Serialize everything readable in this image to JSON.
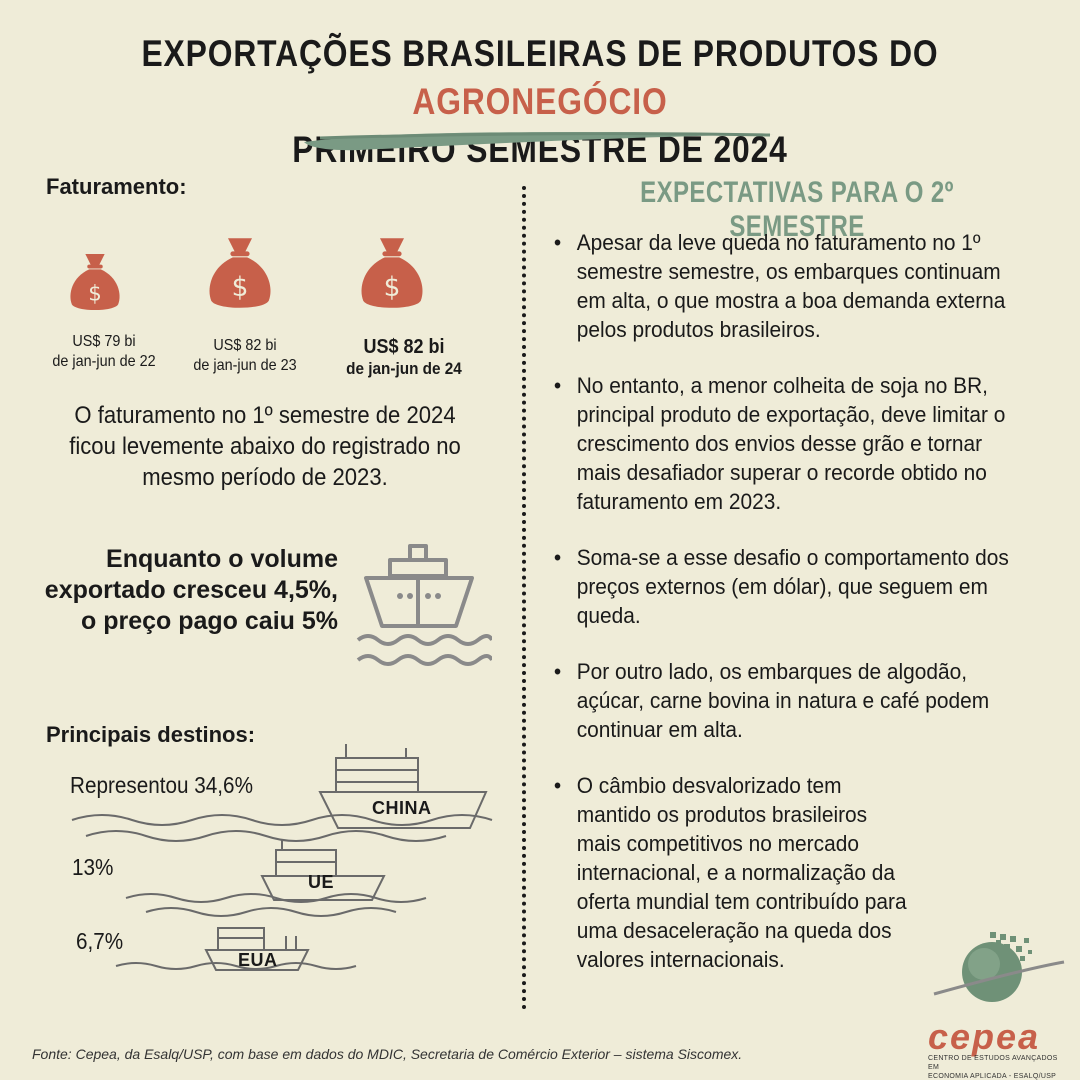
{
  "title": {
    "line1_main": "EXPORTAÇÕES BRASILEIRAS DE PRODUTOS DO",
    "line1_accent": "AGRONEGÓCIO",
    "line2": "PRIMEIRO SEMESTRE DE 2024"
  },
  "faturamento": {
    "heading": "Faturamento:",
    "items": [
      {
        "value": "US$ 79 bi",
        "period": "de jan-jun de 22"
      },
      {
        "value": "US$ 82 bi",
        "period": "de jan-jun de 23"
      },
      {
        "value": "US$ 82 bi",
        "period": "de jan-jun de 24"
      }
    ],
    "summary": "O faturamento no 1º semestre de 2024 ficou levemente abaixo do registrado no mesmo período de 2023."
  },
  "volume_text": "Enquanto o volume exportado cresceu 4,5%, o preço pago caiu 5%",
  "destinos": {
    "heading": "Principais destinos:",
    "items": [
      {
        "value": "Representou 34,6%",
        "country": "CHINA"
      },
      {
        "value": "13%",
        "country": "UE"
      },
      {
        "value": "6,7%",
        "country": "EUA"
      }
    ]
  },
  "expectativas": {
    "heading": "EXPECTATIVAS PARA O 2º SEMESTRE",
    "bullets": [
      "Apesar da leve queda no faturamento no 1º semestre semestre, os embarques continuam em alta, o que mostra a boa demanda externa pelos produtos brasileiros.",
      "No entanto, a menor colheita de soja no BR, principal produto de exportação, deve limitar o crescimento dos envios desse grão e tornar mais desafiador superar o recorde obtido no faturamento em 2023.",
      "Soma-se a esse desafio o comportamento dos preços externos (em dólar), que seguem em queda.",
      "Por outro lado, os embarques de algodão, açúcar, carne bovina in natura e café podem continuar em alta.",
      "O câmbio desvalorizado tem mantido os produtos brasileiros mais competitivos no mercado internacional, e a normalização da oferta mundial tem contribuído para uma desaceleração na queda dos valores internacionais."
    ]
  },
  "source": "Fonte: Cepea, da Esalq/USP, com base em dados do MDIC, Secretaria de Comércio Exterior – sistema Siscomex.",
  "logo": {
    "word": "cepea",
    "sub_line1": "CENTRO DE ESTUDOS AVANÇADOS EM",
    "sub_line2": "ECONOMIA APLICADA - ESALQ/USP"
  },
  "colors": {
    "background": "#efecd8",
    "accent": "#c7604a",
    "green": "#7a9a84",
    "text": "#1a1a1a"
  }
}
